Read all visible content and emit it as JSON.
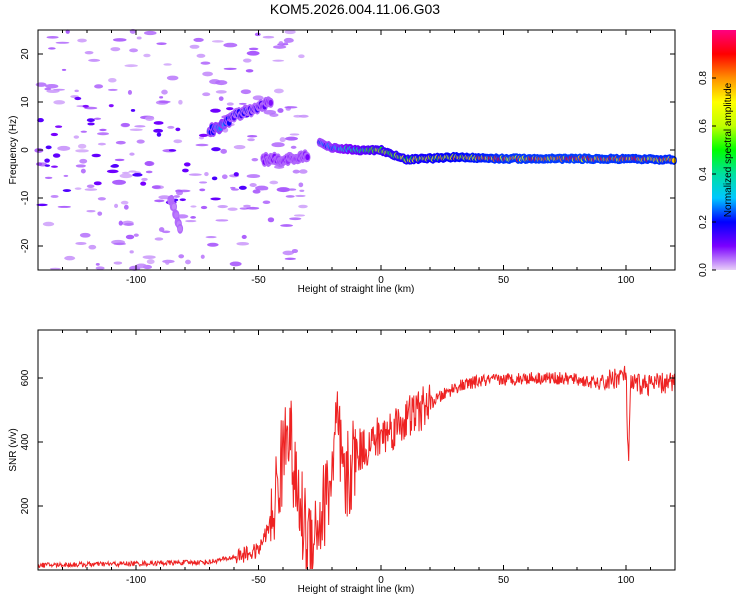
{
  "title": "KOM5.2026.004.11.06.G03",
  "chart_data": [
    {
      "type": "heatmap",
      "name": "spectrogram",
      "xlabel": "Height of straight line (km)",
      "ylabel": "Frequency (Hz)",
      "xlim": [
        -140,
        120
      ],
      "ylim": [
        -25,
        25
      ],
      "xticks": [
        -100,
        -50,
        0,
        50,
        100
      ],
      "yticks": [
        -20,
        -10,
        0,
        10,
        20
      ],
      "xtick_labels": [
        "-100",
        "-50",
        "0",
        "50",
        "100"
      ],
      "ytick_labels": [
        "-20",
        "-10",
        "0",
        "10",
        "20"
      ],
      "colorbar": {
        "label": "Normalized spectral amplitude",
        "range": [
          0.0,
          1.0
        ],
        "ticks": [
          0.0,
          0.2,
          0.4,
          0.6,
          0.8
        ],
        "tick_labels": [
          "0.0",
          "0.2",
          "0.4",
          "0.6",
          "0.8"
        ],
        "colormap": [
          "#e8d0f8",
          "#7a00ff",
          "#0000ff",
          "#00c8ff",
          "#00e0a0",
          "#00ff00",
          "#c0ff00",
          "#ffff00",
          "#ff9000",
          "#ff0000",
          "#ff0080"
        ]
      },
      "features": [
        {
          "name": "main-trace",
          "x": [
            -25,
            -20,
            -10,
            0,
            10,
            30,
            50,
            80,
            100,
            120
          ],
          "freq": [
            1.5,
            0.5,
            0,
            0,
            -2,
            -1.5,
            -1.8,
            -1.8,
            -1.9,
            -2.0
          ],
          "amp": [
            0.25,
            0.3,
            0.45,
            0.6,
            0.7,
            0.8,
            0.9,
            0.92,
            0.9,
            0.88
          ]
        },
        {
          "name": "upper-arc",
          "x": [
            -70,
            -65,
            -60,
            -55,
            -50,
            -45
          ],
          "freq": [
            4,
            5,
            7,
            8,
            9,
            10
          ],
          "amp": [
            0.25,
            0.3,
            0.2,
            0.22,
            0.15,
            0.1
          ]
        },
        {
          "name": "lower-cluster",
          "x": [
            -48,
            -40,
            -35,
            -30
          ],
          "freq": [
            -2,
            -2,
            -2,
            -1
          ],
          "amp": [
            0.1,
            0.1,
            0.1,
            0.1
          ]
        },
        {
          "name": "descending-band",
          "x": [
            -86,
            -84,
            -82
          ],
          "freq": [
            -10,
            -13,
            -17
          ],
          "amp": [
            0.05,
            0.05,
            0.05
          ]
        }
      ]
    },
    {
      "type": "line",
      "name": "snr",
      "xlabel": "Height of straight line (km)",
      "ylabel": "SNR (v/v)",
      "xlim": [
        -140,
        120
      ],
      "ylim": [
        0,
        750
      ],
      "xticks": [
        -100,
        -50,
        0,
        50,
        100
      ],
      "yticks": [
        200,
        400,
        600
      ],
      "xtick_labels": [
        "-100",
        "-50",
        "0",
        "50",
        "100"
      ],
      "ytick_labels": [
        "200",
        "400",
        "600"
      ],
      "color": "#ee2222",
      "series": [
        {
          "name": "SNR",
          "x": [
            -140,
            -100,
            -70,
            -60,
            -50,
            -45,
            -40,
            -38,
            -35,
            -30,
            -25,
            -20,
            -18,
            -15,
            -10,
            -5,
            0,
            10,
            20,
            30,
            40,
            50,
            60,
            70,
            80,
            90,
            95,
            100,
            101,
            102,
            110,
            120
          ],
          "y": [
            15,
            20,
            25,
            40,
            60,
            150,
            350,
            500,
            250,
            100,
            150,
            300,
            450,
            250,
            370,
            390,
            420,
            470,
            520,
            570,
            590,
            595,
            600,
            600,
            595,
            580,
            600,
            610,
            330,
            580,
            580,
            585
          ]
        }
      ]
    }
  ]
}
